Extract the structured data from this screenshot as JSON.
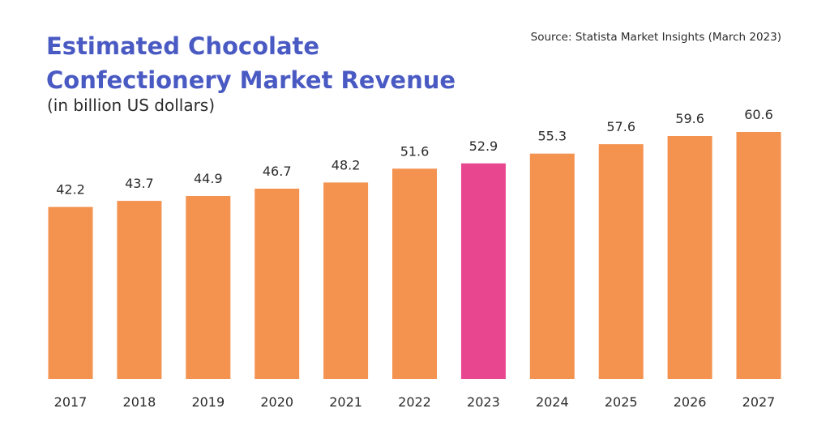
{
  "header": {
    "title_line1": "Estimated Chocolate",
    "title_line2": "Confectionery Market Revenue",
    "subtitle": "(in billion US dollars)",
    "source": "Source: Statista Market Insights (March 2023)"
  },
  "colors": {
    "title": "#4a5ac3",
    "bar": "#f4924f",
    "highlight": "#e8478f",
    "text": "#2b2b2b"
  },
  "chart_data": {
    "type": "bar",
    "title": "Estimated Chocolate Confectionery Market Revenue",
    "subtitle": "(in billion US dollars)",
    "categories": [
      "2017",
      "2018",
      "2019",
      "2020",
      "2021",
      "2022",
      "2023",
      "2024",
      "2025",
      "2026",
      "2027"
    ],
    "values": [
      42.2,
      43.7,
      44.9,
      46.7,
      48.2,
      51.6,
      52.9,
      55.3,
      57.6,
      59.6,
      60.6
    ],
    "value_labels": [
      "42.2",
      "43.7",
      "44.9",
      "46.7",
      "48.2",
      "51.6",
      "52.9",
      "55.3",
      "57.6",
      "59.6",
      "60.6"
    ],
    "highlight_category": "2023",
    "xlabel": "",
    "ylabel": "",
    "ylim": [
      0,
      60.6
    ],
    "grid": false,
    "legend": "none",
    "data_labels": "above-bars"
  }
}
